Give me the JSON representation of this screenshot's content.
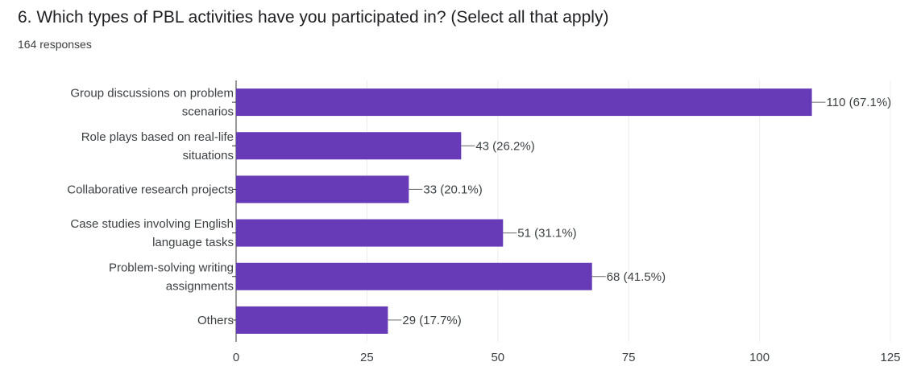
{
  "form": {
    "question": "6.  Which types of PBL activities have you participated in? (Select all that apply)",
    "responses": "164 responses"
  },
  "chart_data": {
    "type": "bar",
    "orientation": "horizontal",
    "categories": [
      [
        "Group discussions on problem",
        "scenarios"
      ],
      [
        "Role plays based on real-life",
        "situations"
      ],
      [
        "Collaborative research projects"
      ],
      [
        "Case studies involving English",
        "language tasks"
      ],
      [
        "Problem-solving writing",
        "assignments"
      ],
      [
        "Others"
      ]
    ],
    "values": [
      110,
      43,
      33,
      51,
      68,
      29
    ],
    "data_labels": [
      "110 (67.1%)",
      "43 (26.2%)",
      "33 (20.1%)",
      "51 (31.1%)",
      "68 (41.5%)",
      "29 (17.7%)"
    ],
    "xlim": [
      0,
      125
    ],
    "xticks": [
      0,
      25,
      50,
      75,
      100,
      125
    ],
    "grid": true,
    "bar_color": "#673ab7"
  }
}
